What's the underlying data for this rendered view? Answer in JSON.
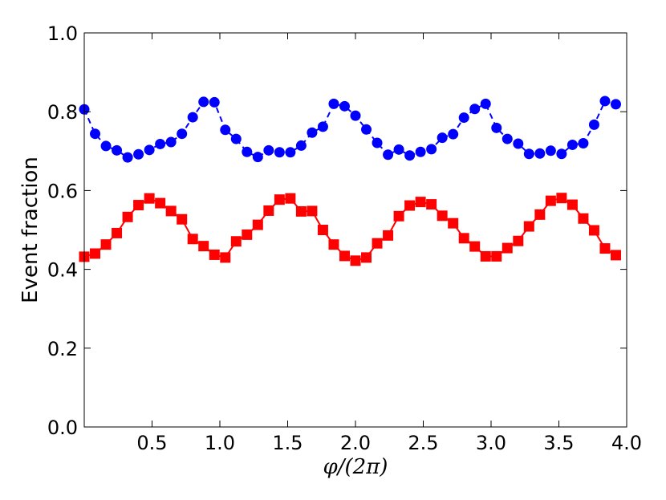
{
  "chart_data": {
    "type": "line",
    "title": "",
    "xlabel": "φ/(2π)",
    "ylabel": "Event fraction",
    "xlim": [
      0,
      4.0
    ],
    "ylim": [
      0,
      1.0
    ],
    "xticks": [
      "0.5",
      "1.0",
      "1.5",
      "2.0",
      "2.5",
      "3.0",
      "3.5",
      "4.0"
    ],
    "yticks": [
      "0.0",
      "0.2",
      "0.4",
      "0.6",
      "0.8",
      "1.0"
    ],
    "grid": false,
    "series": [
      {
        "color": "#0000ff",
        "marker": "circle",
        "line_style": "dashed",
        "x": [
          0.0,
          0.08,
          0.16,
          0.24,
          0.32,
          0.4,
          0.48,
          0.56,
          0.64,
          0.72,
          0.8,
          0.88,
          0.96,
          1.04,
          1.12,
          1.2,
          1.28,
          1.36,
          1.44,
          1.52,
          1.6,
          1.68,
          1.76,
          1.84,
          1.92,
          2.0,
          2.08,
          2.16,
          2.24,
          2.32,
          2.4,
          2.48,
          2.56,
          2.64,
          2.72,
          2.8,
          2.88,
          2.96,
          3.04,
          3.12,
          3.2,
          3.28,
          3.36,
          3.44,
          3.52,
          3.6,
          3.68,
          3.76,
          3.84,
          3.92
        ],
        "y": [
          0.806,
          0.744,
          0.713,
          0.702,
          0.684,
          0.692,
          0.703,
          0.718,
          0.723,
          0.744,
          0.786,
          0.825,
          0.824,
          0.754,
          0.731,
          0.698,
          0.685,
          0.702,
          0.697,
          0.697,
          0.714,
          0.747,
          0.762,
          0.82,
          0.814,
          0.79,
          0.755,
          0.721,
          0.691,
          0.704,
          0.689,
          0.698,
          0.705,
          0.734,
          0.743,
          0.785,
          0.807,
          0.82,
          0.759,
          0.731,
          0.719,
          0.693,
          0.694,
          0.701,
          0.693,
          0.716,
          0.72,
          0.767,
          0.827,
          0.819
        ]
      },
      {
        "color": "#ff0000",
        "marker": "square",
        "line_style": "solid",
        "x": [
          0.0,
          0.08,
          0.16,
          0.24,
          0.32,
          0.4,
          0.48,
          0.56,
          0.64,
          0.72,
          0.8,
          0.88,
          0.96,
          1.04,
          1.12,
          1.2,
          1.28,
          1.36,
          1.44,
          1.52,
          1.6,
          1.68,
          1.76,
          1.84,
          1.92,
          2.0,
          2.08,
          2.16,
          2.24,
          2.32,
          2.4,
          2.48,
          2.56,
          2.64,
          2.72,
          2.8,
          2.88,
          2.96,
          3.04,
          3.12,
          3.2,
          3.28,
          3.36,
          3.44,
          3.52,
          3.6,
          3.68,
          3.76,
          3.84,
          3.92
        ],
        "y": [
          0.432,
          0.44,
          0.463,
          0.492,
          0.533,
          0.563,
          0.58,
          0.568,
          0.548,
          0.527,
          0.477,
          0.459,
          0.437,
          0.43,
          0.471,
          0.488,
          0.513,
          0.549,
          0.577,
          0.58,
          0.547,
          0.548,
          0.5,
          0.463,
          0.434,
          0.422,
          0.43,
          0.466,
          0.486,
          0.535,
          0.562,
          0.571,
          0.565,
          0.536,
          0.517,
          0.479,
          0.458,
          0.433,
          0.433,
          0.454,
          0.472,
          0.509,
          0.539,
          0.574,
          0.581,
          0.564,
          0.529,
          0.499,
          0.453,
          0.436
        ]
      }
    ]
  }
}
